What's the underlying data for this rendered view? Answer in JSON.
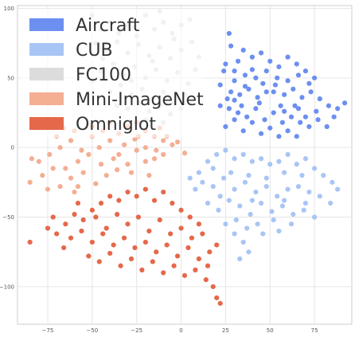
{
  "chart_data": {
    "type": "scatter",
    "title": "",
    "xlabel": "",
    "ylabel": "",
    "xlim": [
      -92,
      96
    ],
    "ylim": [
      -127,
      102
    ],
    "grid": true,
    "legend_placement": "top-left",
    "x_ticks": [
      -75,
      -50,
      -25,
      0,
      25,
      50,
      75
    ],
    "y_ticks": [
      100,
      50,
      0,
      -50,
      -100
    ],
    "x_tick_labels": [
      "−75",
      "−50",
      "−25",
      "0",
      "25",
      "50",
      "75"
    ],
    "y_tick_labels": [
      "100",
      "50",
      "0",
      "−50",
      "−100"
    ],
    "series": [
      {
        "name": "Aircraft",
        "color": "#6c8ff0",
        "points": [
          [
            27,
            82
          ],
          [
            28,
            73
          ],
          [
            25,
            60
          ],
          [
            30,
            55
          ],
          [
            32,
            62
          ],
          [
            35,
            70
          ],
          [
            40,
            65
          ],
          [
            45,
            68
          ],
          [
            50,
            62
          ],
          [
            55,
            58
          ],
          [
            60,
            65
          ],
          [
            65,
            60
          ],
          [
            70,
            55
          ],
          [
            75,
            50
          ],
          [
            22,
            45
          ],
          [
            28,
            40
          ],
          [
            33,
            38
          ],
          [
            38,
            42
          ],
          [
            43,
            36
          ],
          [
            48,
            40
          ],
          [
            53,
            45
          ],
          [
            58,
            38
          ],
          [
            63,
            42
          ],
          [
            68,
            36
          ],
          [
            73,
            40
          ],
          [
            78,
            35
          ],
          [
            83,
            30
          ],
          [
            88,
            28
          ],
          [
            92,
            32
          ],
          [
            22,
            30
          ],
          [
            27,
            28
          ],
          [
            32,
            25
          ],
          [
            37,
            22
          ],
          [
            42,
            28
          ],
          [
            47,
            20
          ],
          [
            52,
            25
          ],
          [
            57,
            18
          ],
          [
            62,
            22
          ],
          [
            67,
            18
          ],
          [
            72,
            15
          ],
          [
            77,
            20
          ],
          [
            82,
            15
          ],
          [
            86,
            22
          ],
          [
            25,
            15
          ],
          [
            30,
            20
          ],
          [
            35,
            12
          ],
          [
            40,
            18
          ],
          [
            45,
            10
          ],
          [
            50,
            14
          ],
          [
            55,
            8
          ],
          [
            60,
            12
          ],
          [
            65,
            8
          ],
          [
            24,
            55
          ],
          [
            30,
            48
          ],
          [
            36,
            52
          ],
          [
            42,
            50
          ],
          [
            48,
            55
          ],
          [
            54,
            50
          ],
          [
            60,
            48
          ],
          [
            66,
            52
          ],
          [
            72,
            46
          ],
          [
            26,
            35
          ],
          [
            34,
            30
          ],
          [
            44,
            32
          ],
          [
            56,
            30
          ],
          [
            66,
            28
          ],
          [
            76,
            26
          ],
          [
            40,
            56
          ],
          [
            52,
            40
          ],
          [
            64,
            30
          ],
          [
            70,
            22
          ],
          [
            58,
            26
          ],
          [
            46,
            46
          ],
          [
            36,
            44
          ],
          [
            30,
            34
          ]
        ]
      },
      {
        "name": "CUB",
        "color": "#a9c5f5",
        "points": [
          [
            10,
            -18
          ],
          [
            15,
            -10
          ],
          [
            20,
            -5
          ],
          [
            25,
            -2
          ],
          [
            30,
            -8
          ],
          [
            35,
            -5
          ],
          [
            40,
            -10
          ],
          [
            45,
            -8
          ],
          [
            50,
            -12
          ],
          [
            55,
            -10
          ],
          [
            60,
            -5
          ],
          [
            65,
            -12
          ],
          [
            70,
            -8
          ],
          [
            75,
            -15
          ],
          [
            80,
            -20
          ],
          [
            85,
            -25
          ],
          [
            88,
            -30
          ],
          [
            12,
            -25
          ],
          [
            18,
            -28
          ],
          [
            24,
            -22
          ],
          [
            30,
            -30
          ],
          [
            36,
            -25
          ],
          [
            42,
            -32
          ],
          [
            48,
            -28
          ],
          [
            54,
            -35
          ],
          [
            60,
            -30
          ],
          [
            66,
            -28
          ],
          [
            72,
            -32
          ],
          [
            78,
            -35
          ],
          [
            84,
            -40
          ],
          [
            15,
            -40
          ],
          [
            21,
            -45
          ],
          [
            27,
            -38
          ],
          [
            33,
            -42
          ],
          [
            39,
            -48
          ],
          [
            45,
            -40
          ],
          [
            51,
            -46
          ],
          [
            57,
            -42
          ],
          [
            63,
            -48
          ],
          [
            69,
            -45
          ],
          [
            75,
            -50
          ],
          [
            25,
            -55
          ],
          [
            31,
            -52
          ],
          [
            37,
            -58
          ],
          [
            43,
            -55
          ],
          [
            30,
            -62
          ],
          [
            35,
            -68
          ],
          [
            38,
            -75
          ],
          [
            33,
            -80
          ],
          [
            5,
            -22
          ],
          [
            8,
            -30
          ],
          [
            18,
            -15
          ],
          [
            28,
            -18
          ],
          [
            38,
            -20
          ],
          [
            48,
            -22
          ],
          [
            58,
            -18
          ],
          [
            68,
            -20
          ],
          [
            22,
            -35
          ],
          [
            40,
            -38
          ],
          [
            58,
            -38
          ],
          [
            70,
            -40
          ],
          [
            62,
            -55
          ],
          [
            55,
            -60
          ],
          [
            46,
            -62
          ],
          [
            52,
            -52
          ]
        ]
      },
      {
        "name": "FC100",
        "color": "#dcdcdc",
        "points": [
          [
            -50,
            95
          ],
          [
            -45,
            85
          ],
          [
            -40,
            90
          ],
          [
            -35,
            82
          ],
          [
            -30,
            88
          ],
          [
            -25,
            80
          ],
          [
            -20,
            95
          ],
          [
            -15,
            85
          ],
          [
            -10,
            90
          ],
          [
            -5,
            82
          ],
          [
            0,
            88
          ],
          [
            5,
            92
          ],
          [
            -48,
            75
          ],
          [
            -42,
            70
          ],
          [
            -36,
            76
          ],
          [
            -30,
            68
          ],
          [
            -24,
            74
          ],
          [
            -18,
            66
          ],
          [
            -12,
            72
          ],
          [
            -6,
            64
          ],
          [
            0,
            70
          ],
          [
            6,
            76
          ],
          [
            10,
            65
          ],
          [
            -45,
            55
          ],
          [
            -38,
            60
          ],
          [
            -32,
            52
          ],
          [
            -26,
            58
          ],
          [
            -20,
            50
          ],
          [
            -14,
            56
          ],
          [
            -8,
            48
          ],
          [
            -2,
            54
          ],
          [
            4,
            46
          ],
          [
            -40,
            40
          ],
          [
            -34,
            45
          ],
          [
            -28,
            38
          ],
          [
            -22,
            42
          ],
          [
            -16,
            35
          ],
          [
            -10,
            40
          ],
          [
            -4,
            32
          ],
          [
            2,
            38
          ],
          [
            -30,
            28
          ],
          [
            -24,
            32
          ],
          [
            -18,
            26
          ],
          [
            -12,
            30
          ],
          [
            -6,
            24
          ],
          [
            0,
            28
          ],
          [
            -20,
            20
          ],
          [
            -10,
            18
          ],
          [
            -28,
            48
          ],
          [
            -16,
            62
          ],
          [
            -4,
            78
          ],
          [
            8,
            56
          ],
          [
            -44,
            64
          ],
          [
            -50,
            48
          ],
          [
            -36,
            30
          ],
          [
            -26,
            86
          ],
          [
            -12,
            98
          ]
        ]
      },
      {
        "name": "Mini-ImageNet",
        "color": "#f4ae92",
        "points": [
          [
            -85,
            -25
          ],
          [
            -78,
            -20
          ],
          [
            -72,
            -15
          ],
          [
            -68,
            -28
          ],
          [
            -62,
            -22
          ],
          [
            -58,
            -10
          ],
          [
            -52,
            -5
          ],
          [
            -46,
            0
          ],
          [
            -40,
            5
          ],
          [
            -35,
            10
          ],
          [
            -30,
            15
          ],
          [
            -25,
            18
          ],
          [
            -20,
            12
          ],
          [
            -15,
            8
          ],
          [
            -10,
            5
          ],
          [
            -5,
            2
          ],
          [
            -80,
            -10
          ],
          [
            -74,
            -5
          ],
          [
            -68,
            0
          ],
          [
            -62,
            5
          ],
          [
            -56,
            -2
          ],
          [
            -50,
            8
          ],
          [
            -44,
            12
          ],
          [
            -38,
            -8
          ],
          [
            -32,
            2
          ],
          [
            -26,
            6
          ],
          [
            -20,
            0
          ],
          [
            -14,
            -2
          ],
          [
            -8,
            8
          ],
          [
            -2,
            4
          ],
          [
            -65,
            -15
          ],
          [
            -55,
            -18
          ],
          [
            -45,
            -12
          ],
          [
            -35,
            -5
          ],
          [
            -25,
            -2
          ],
          [
            -15,
            -8
          ],
          [
            -70,
            8
          ],
          [
            -60,
            12
          ],
          [
            -50,
            15
          ],
          [
            -40,
            18
          ],
          [
            -30,
            -12
          ],
          [
            -20,
            -10
          ],
          [
            -10,
            -5
          ],
          [
            -75,
            -30
          ],
          [
            -58,
            -28
          ],
          [
            -42,
            -20
          ],
          [
            -28,
            -18
          ],
          [
            -18,
            -20
          ],
          [
            -60,
            -32
          ],
          [
            -48,
            -26
          ],
          [
            -36,
            -16
          ],
          [
            -24,
            8
          ],
          [
            -12,
            14
          ],
          [
            2,
            -4
          ],
          [
            -84,
            -8
          ],
          [
            -66,
            14
          ]
        ]
      },
      {
        "name": "Omniglot",
        "color": "#e5684a",
        "points": [
          [
            -85,
            -68
          ],
          [
            -75,
            -58
          ],
          [
            -70,
            -62
          ],
          [
            -65,
            -55
          ],
          [
            -60,
            -48
          ],
          [
            -55,
            -52
          ],
          [
            -50,
            -45
          ],
          [
            -45,
            -40
          ],
          [
            -40,
            -35
          ],
          [
            -35,
            -38
          ],
          [
            -30,
            -32
          ],
          [
            -25,
            -35
          ],
          [
            -20,
            -30
          ],
          [
            -15,
            -38
          ],
          [
            -10,
            -32
          ],
          [
            -5,
            -40
          ],
          [
            0,
            -45
          ],
          [
            5,
            -50
          ],
          [
            10,
            -55
          ],
          [
            -62,
            -65
          ],
          [
            -56,
            -60
          ],
          [
            -50,
            -68
          ],
          [
            -44,
            -62
          ],
          [
            -38,
            -70
          ],
          [
            -32,
            -65
          ],
          [
            -26,
            -72
          ],
          [
            -20,
            -68
          ],
          [
            -14,
            -75
          ],
          [
            -8,
            -70
          ],
          [
            -2,
            -78
          ],
          [
            4,
            -72
          ],
          [
            10,
            -80
          ],
          [
            16,
            -75
          ],
          [
            20,
            -70
          ],
          [
            -52,
            -78
          ],
          [
            -46,
            -82
          ],
          [
            -40,
            -76
          ],
          [
            -34,
            -85
          ],
          [
            -28,
            -80
          ],
          [
            -22,
            -88
          ],
          [
            -16,
            -82
          ],
          [
            -10,
            -90
          ],
          [
            -4,
            -85
          ],
          [
            2,
            -92
          ],
          [
            8,
            -88
          ],
          [
            14,
            -95
          ],
          [
            18,
            -100
          ],
          [
            20,
            -108
          ],
          [
            22,
            -112
          ],
          [
            -58,
            -40
          ],
          [
            -48,
            -50
          ],
          [
            -36,
            -48
          ],
          [
            -24,
            -50
          ],
          [
            -12,
            -52
          ],
          [
            0,
            -58
          ],
          [
            -30,
            -55
          ],
          [
            -18,
            -60
          ],
          [
            -6,
            -62
          ],
          [
            6,
            -65
          ],
          [
            -42,
            -58
          ],
          [
            -66,
            -72
          ],
          [
            -72,
            -50
          ],
          [
            12,
            -62
          ],
          [
            15,
            -85
          ]
        ]
      }
    ]
  }
}
